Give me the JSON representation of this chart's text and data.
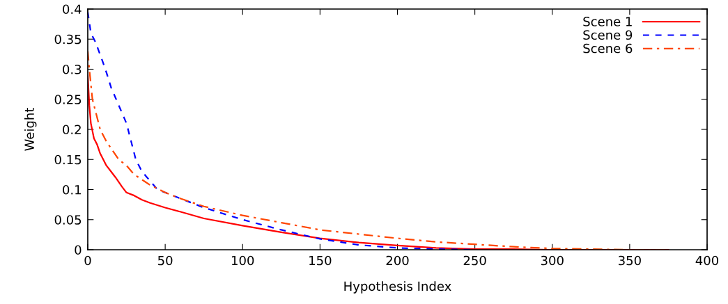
{
  "chart_data": {
    "type": "line",
    "xlabel": "Hypothesis Index",
    "ylabel": "Weight",
    "xlim": [
      0,
      400
    ],
    "xticks": [
      0,
      50,
      100,
      150,
      200,
      250,
      300,
      350,
      400
    ],
    "ylim": [
      0,
      0.4
    ],
    "yticks": [
      0,
      0.05,
      0.1,
      0.15,
      0.2,
      0.25,
      0.3,
      0.35,
      0.4
    ],
    "legend": "top right",
    "grid": false,
    "marker": "none",
    "series": [
      {
        "name": "Scene 1",
        "color": "#ff0000",
        "line_style": "solid",
        "x": [
          0,
          1,
          2,
          4,
          6,
          8,
          10,
          12,
          15,
          18,
          22,
          25,
          30,
          35,
          40,
          50,
          60,
          75,
          100,
          125,
          150,
          175,
          200,
          225,
          250,
          275,
          300,
          350,
          375
        ],
        "values": [
          0.29,
          0.24,
          0.21,
          0.185,
          0.175,
          0.16,
          0.15,
          0.14,
          0.13,
          0.12,
          0.105,
          0.095,
          0.09,
          0.083,
          0.078,
          0.07,
          0.063,
          0.052,
          0.04,
          0.029,
          0.019,
          0.012,
          0.007,
          0.003,
          0.001,
          0.001,
          0,
          0,
          0
        ]
      },
      {
        "name": "Scene 9",
        "color": "#0000ff",
        "line_style": "dashed",
        "x": [
          0,
          2,
          5,
          10,
          12,
          15,
          20,
          25,
          28,
          31,
          35,
          40,
          45,
          50,
          60,
          75,
          100,
          125,
          150,
          175,
          200,
          225,
          250
        ],
        "values": [
          0.395,
          0.36,
          0.345,
          0.31,
          0.295,
          0.27,
          0.24,
          0.21,
          0.18,
          0.15,
          0.13,
          0.115,
          0.1,
          0.095,
          0.085,
          0.07,
          0.05,
          0.033,
          0.018,
          0.008,
          0.003,
          0.001,
          0
        ]
      },
      {
        "name": "Scene 6",
        "color": "#ff4500",
        "line_style": "dashdot",
        "x": [
          0,
          1,
          3,
          5,
          8,
          12,
          16,
          20,
          25,
          30,
          40,
          50,
          60,
          75,
          100,
          125,
          150,
          175,
          200,
          225,
          250,
          275,
          300,
          325,
          350,
          375
        ],
        "values": [
          0.33,
          0.3,
          0.25,
          0.23,
          0.2,
          0.18,
          0.165,
          0.15,
          0.14,
          0.125,
          0.108,
          0.095,
          0.085,
          0.072,
          0.057,
          0.045,
          0.033,
          0.026,
          0.019,
          0.013,
          0.009,
          0.005,
          0.002,
          0.001,
          0,
          0
        ]
      }
    ]
  }
}
